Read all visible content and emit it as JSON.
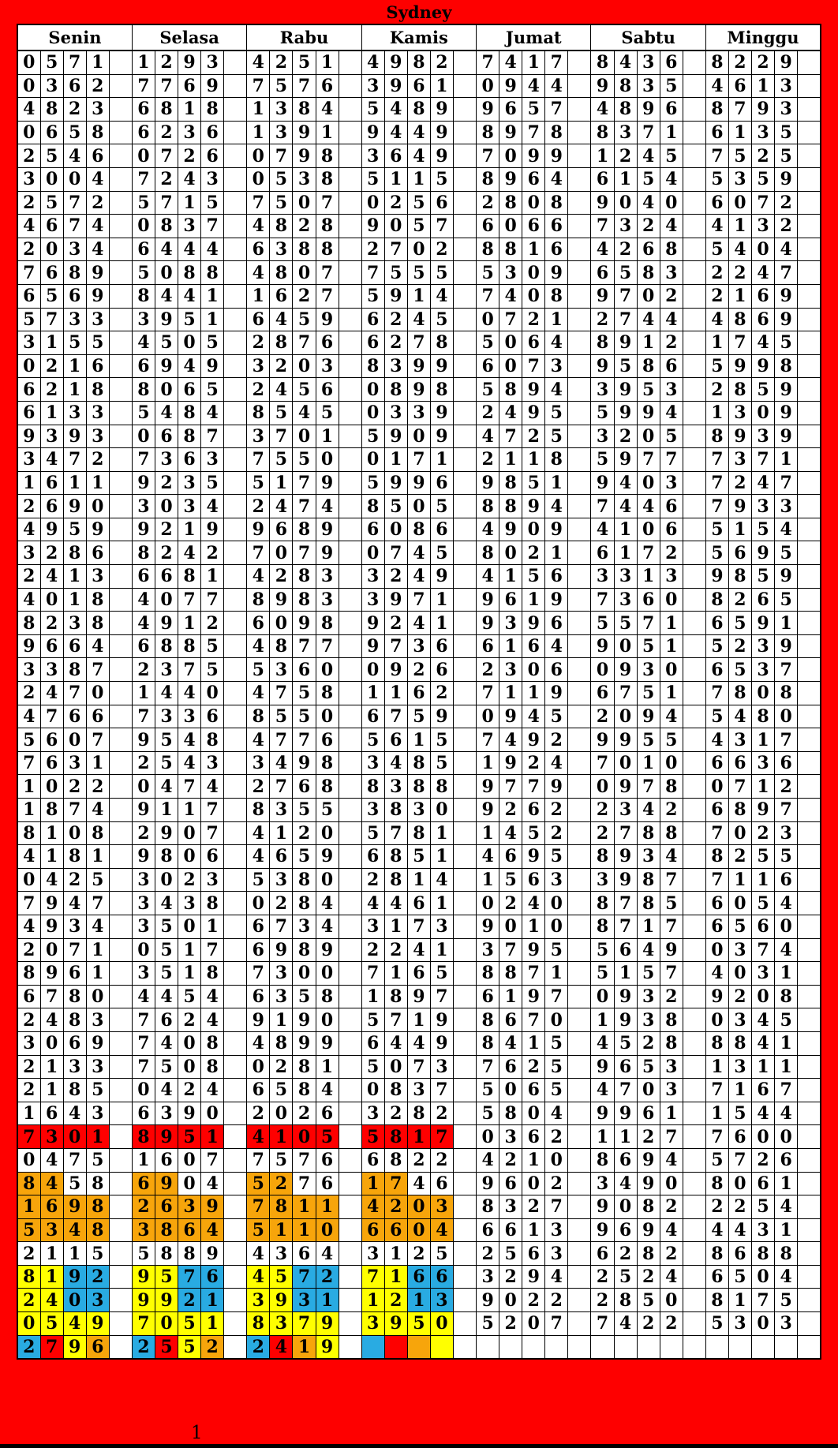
{
  "title": "Sydney",
  "footer": {
    "page_number": "1"
  },
  "colors": {
    "frame": "#FE0000",
    "red": "#FE0000",
    "orange": "#F7A50B",
    "yellow": "#FFFF00",
    "blue": "#29ABE2",
    "cell_bg": "#FFFFFF",
    "text": "#000000"
  },
  "table": {
    "day_headers": [
      "Senin",
      "Selasa",
      "Rabu",
      "Kamis",
      "Jumat",
      "Sabtu",
      "Minggu"
    ],
    "color_codes": {
      "r": "red",
      "o": "orange",
      "y": "yellow",
      "b": "blue",
      "w": "white"
    },
    "rows": [
      [
        "0571",
        "1293",
        "4251",
        "4982",
        "7417",
        "8436",
        "8229"
      ],
      [
        "0362",
        "7769",
        "7576",
        "3961",
        "0944",
        "9835",
        "4613"
      ],
      [
        "4823",
        "6818",
        "1384",
        "5489",
        "9657",
        "4896",
        "8793"
      ],
      [
        "0658",
        "6236",
        "1391",
        "9449",
        "8978",
        "8371",
        "6135"
      ],
      [
        "2546",
        "0726",
        "0798",
        "3649",
        "7099",
        "1245",
        "7525"
      ],
      [
        "3004",
        "7243",
        "0538",
        "5115",
        "8964",
        "6154",
        "5359"
      ],
      [
        "2572",
        "5715",
        "7507",
        "0256",
        "2808",
        "9040",
        "6072"
      ],
      [
        "4674",
        "0837",
        "4828",
        "9057",
        "6066",
        "7324",
        "4132"
      ],
      [
        "2034",
        "6444",
        "6388",
        "2702",
        "8816",
        "4268",
        "5404"
      ],
      [
        "7689",
        "5088",
        "4807",
        "7555",
        "5309",
        "6583",
        "2247"
      ],
      [
        "6569",
        "8441",
        "1627",
        "5914",
        "7408",
        "9702",
        "2169"
      ],
      [
        "5733",
        "3951",
        "6459",
        "6245",
        "0721",
        "2744",
        "4869"
      ],
      [
        "3155",
        "4505",
        "2876",
        "6278",
        "5064",
        "8912",
        "1745"
      ],
      [
        "0216",
        "6949",
        "3203",
        "8399",
        "6073",
        "9586",
        "5998"
      ],
      [
        "6218",
        "8065",
        "2456",
        "0898",
        "5894",
        "3953",
        "2859"
      ],
      [
        "6133",
        "5484",
        "8545",
        "0339",
        "2495",
        "5994",
        "1309"
      ],
      [
        "9393",
        "0687",
        "3701",
        "5909",
        "4725",
        "3205",
        "8939"
      ],
      [
        "3472",
        "7363",
        "7550",
        "0171",
        "2118",
        "5977",
        "7371"
      ],
      [
        "1611",
        "9235",
        "5179",
        "5996",
        "9851",
        "9403",
        "7247"
      ],
      [
        "2690",
        "3034",
        "2474",
        "8505",
        "8894",
        "7446",
        "7933"
      ],
      [
        "4959",
        "9219",
        "9689",
        "6086",
        "4909",
        "4106",
        "5154"
      ],
      [
        "3286",
        "8242",
        "7079",
        "0745",
        "8021",
        "6172",
        "5695"
      ],
      [
        "2413",
        "6681",
        "4283",
        "3249",
        "4156",
        "3313",
        "9859"
      ],
      [
        "4018",
        "4077",
        "8983",
        "3971",
        "9619",
        "7360",
        "8265"
      ],
      [
        "8238",
        "4912",
        "6098",
        "9241",
        "9396",
        "5571",
        "6591"
      ],
      [
        "9664",
        "6885",
        "4877",
        "9736",
        "6164",
        "9051",
        "5239"
      ],
      [
        "3387",
        "2375",
        "5360",
        "0926",
        "2306",
        "0930",
        "6537"
      ],
      [
        "2470",
        "1440",
        "4758",
        "1162",
        "7119",
        "6751",
        "7808"
      ],
      [
        "4766",
        "7336",
        "8550",
        "6759",
        "0945",
        "2094",
        "5480"
      ],
      [
        "5607",
        "9548",
        "4776",
        "5615",
        "7492",
        "9955",
        "4317"
      ],
      [
        "7631",
        "2543",
        "3498",
        "3485",
        "1924",
        "7010",
        "6636"
      ],
      [
        "1022",
        "0474",
        "2768",
        "8388",
        "9779",
        "0978",
        "0712"
      ],
      [
        "1874",
        "9117",
        "8355",
        "3830",
        "9262",
        "2342",
        "6897"
      ],
      [
        "8108",
        "2907",
        "4120",
        "5781",
        "1452",
        "2788",
        "7023"
      ],
      [
        "4181",
        "9806",
        "4659",
        "6851",
        "4695",
        "8934",
        "8255"
      ],
      [
        "0425",
        "3023",
        "5380",
        "2814",
        "1563",
        "3987",
        "7116"
      ],
      [
        "7947",
        "3438",
        "0284",
        "4461",
        "0240",
        "8785",
        "6054"
      ],
      [
        "4934",
        "3501",
        "6734",
        "3173",
        "9010",
        "8717",
        "6560"
      ],
      [
        "2071",
        "0517",
        "6989",
        "2241",
        "3795",
        "5649",
        "0374"
      ],
      [
        "8961",
        "3518",
        "7300",
        "7165",
        "8871",
        "5157",
        "4031"
      ],
      [
        "6780",
        "4454",
        "6358",
        "1897",
        "6197",
        "0932",
        "9208"
      ],
      [
        "2483",
        "7624",
        "9190",
        "5719",
        "8670",
        "1938",
        "0345"
      ],
      [
        "3069",
        "7408",
        "4899",
        "6449",
        "8415",
        "4528",
        "8841"
      ],
      [
        "2133",
        "7508",
        "0281",
        "5073",
        "7625",
        "9653",
        "1311"
      ],
      [
        "2185",
        "0424",
        "6584",
        "0837",
        "5065",
        "4703",
        "7167"
      ],
      [
        "1643",
        "6390",
        "2026",
        "3282",
        "5804",
        "9961",
        "1544"
      ],
      [
        "7301|rrrr",
        "8951|rrrr",
        "4105|rrrr",
        "5817|rrrr",
        "0362",
        "1127",
        "7600"
      ],
      [
        "0475",
        "1607",
        "7576",
        "6822",
        "4210",
        "8694",
        "5726"
      ],
      [
        "8458|ooww",
        "6904|ooww",
        "5276|ooww",
        "1746|ooww",
        "9602",
        "3490",
        "8061"
      ],
      [
        "1698|oooo",
        "2639|oooo",
        "7811|oooo",
        "4203|oooo",
        "8327",
        "9082",
        "2254"
      ],
      [
        "5348|oooo",
        "3864|oooo",
        "5110|oooo",
        "6604|oooo",
        "6613",
        "9694",
        "4431"
      ],
      [
        "2115",
        "5889",
        "4364",
        "3125",
        "2563",
        "6282",
        "8688"
      ],
      [
        "8192|yybb",
        "9576|yybb",
        "4572|yybb",
        "7166|yybb",
        "3294",
        "2524",
        "6504"
      ],
      [
        "2403|yybb",
        "9921|yybb",
        "3931|yybb",
        "1213|yybb",
        "9022",
        "2850",
        "8175"
      ],
      [
        "0549|yyyy",
        "7051|yyyy",
        "8379|yyyy",
        "3950|yyyy",
        "5207",
        "7422",
        "5303"
      ],
      [
        "2796|bryo",
        "2552|bryo",
        "2419|broy",
        "|broy",
        "",
        "",
        ""
      ]
    ]
  }
}
